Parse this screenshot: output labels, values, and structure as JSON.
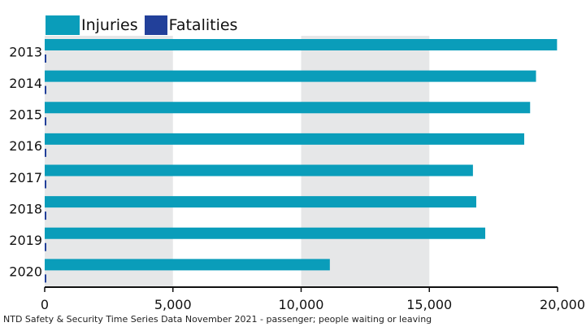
{
  "title_fragment": "",
  "legend": {
    "injuries_label": "Injuries",
    "fatalities_label": "Fatalities"
  },
  "colors": {
    "injuries": "#0a9dba",
    "fatalities": "#22409a",
    "band": "#e6e7e8",
    "axis": "#111111"
  },
  "source_note": "NTD Safety & Security Time Series Data November 2021 - passenger; people waiting or leaving",
  "chart_data": {
    "type": "bar",
    "orientation": "horizontal",
    "categories": [
      "2013",
      "2014",
      "2015",
      "2016",
      "2017",
      "2018",
      "2019",
      "2020"
    ],
    "series": [
      {
        "name": "Injuries",
        "values": [
          19980,
          19160,
          18930,
          18700,
          16700,
          16830,
          17180,
          11120
        ]
      },
      {
        "name": "Fatalities",
        "values": [
          30,
          30,
          25,
          28,
          32,
          30,
          27,
          20
        ]
      }
    ],
    "xlim": [
      0,
      20000
    ],
    "xticks": [
      0,
      5000,
      10000,
      15000,
      20000
    ],
    "xtick_labels": [
      "0",
      "5,000",
      "10,000",
      "15,000",
      "20,000"
    ],
    "legend_position": "top-left",
    "grid": "alternating vertical bands"
  }
}
